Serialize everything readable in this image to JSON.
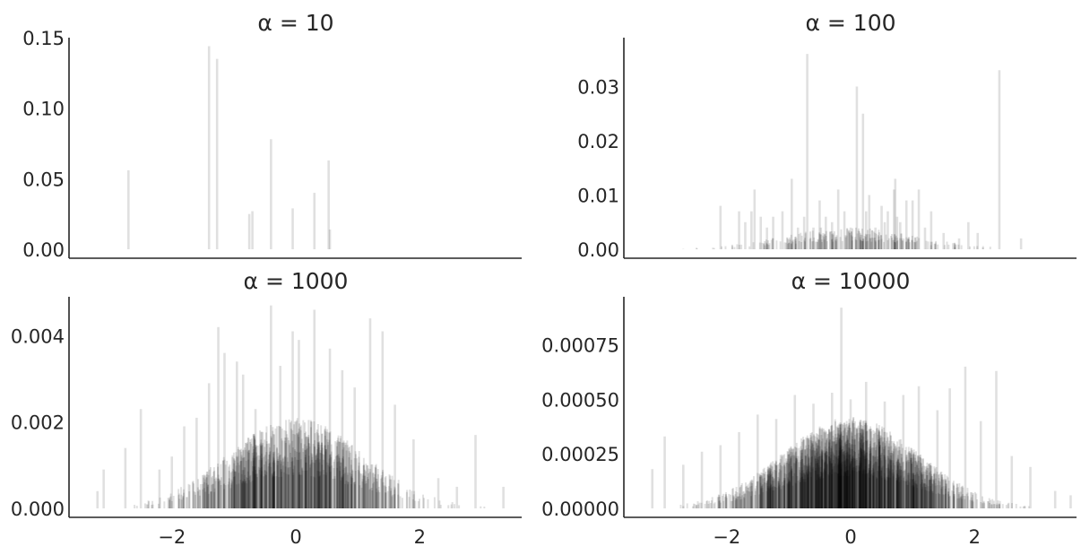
{
  "chart_data": [
    {
      "type": "bar",
      "title": "α = 10",
      "xlabel": "",
      "ylabel": "",
      "ylim": [
        0,
        0.15
      ],
      "yticks": [
        "0.00",
        "0.05",
        "0.10",
        "0.15"
      ],
      "ytick_values": [
        0,
        0.05,
        0.1,
        0.15
      ],
      "xlim": [
        -3.5,
        3.5
      ],
      "xticks": [],
      "xtick_values": [],
      "grid": false,
      "bar_color": "#000000",
      "bar_opacity": 0.12,
      "x": [
        -2.7,
        -1.4,
        -1.27,
        -0.75,
        -0.7,
        -0.4,
        -0.05,
        0.3,
        0.53,
        0.55
      ],
      "values": [
        0.056,
        0.144,
        0.135,
        0.025,
        0.027,
        0.078,
        0.029,
        0.04,
        0.063,
        0.014
      ]
    },
    {
      "type": "bar",
      "title": "α = 100",
      "xlabel": "",
      "ylabel": "",
      "ylim": [
        0,
        0.039
      ],
      "yticks": [
        "0.00",
        "0.01",
        "0.02",
        "0.03"
      ],
      "ytick_values": [
        0,
        0.01,
        0.02,
        0.03
      ],
      "xlim": [
        -3.5,
        3.5
      ],
      "xticks": [],
      "xtick_values": [],
      "grid": false,
      "bar_color": "#000000",
      "bar_opacity": 0.12,
      "x": [
        -2.1,
        -1.8,
        -1.7,
        -1.6,
        -1.55,
        -1.45,
        -1.35,
        -1.25,
        -1.1,
        -0.95,
        -0.85,
        -0.75,
        -0.7,
        -0.6,
        -0.5,
        -0.48,
        -0.4,
        -0.3,
        -0.2,
        -0.1,
        0.0,
        0.1,
        0.2,
        0.25,
        0.3,
        0.4,
        0.5,
        0.55,
        0.6,
        0.7,
        0.72,
        0.75,
        0.8,
        0.9,
        1.0,
        1.1,
        1.2,
        1.3,
        1.5,
        1.75,
        1.9,
        2.05,
        2.4,
        2.75
      ],
      "values": [
        0.008,
        0.007,
        0.005,
        0.007,
        0.011,
        0.006,
        0.004,
        0.006,
        0.007,
        0.013,
        0.004,
        0.006,
        0.036,
        0.004,
        0.009,
        0.004,
        0.006,
        0.005,
        0.011,
        0.007,
        0.004,
        0.03,
        0.025,
        0.007,
        0.01,
        0.004,
        0.008,
        0.005,
        0.007,
        0.011,
        0.013,
        0.006,
        0.005,
        0.009,
        0.009,
        0.011,
        0.004,
        0.007,
        0.003,
        0.002,
        0.005,
        0.003,
        0.033,
        0.002
      ]
    },
    {
      "type": "bar",
      "title": "α = 1000",
      "xlabel": "",
      "ylabel": "",
      "ylim": [
        0,
        0.0049
      ],
      "yticks": [
        "0.000",
        "0.002",
        "0.004"
      ],
      "ytick_values": [
        0,
        0.002,
        0.004
      ],
      "xlim": [
        -3.5,
        3.5
      ],
      "xticks": [
        "−2",
        "0",
        "2"
      ],
      "xtick_values": [
        -2,
        0,
        2
      ],
      "grid": false,
      "bar_color": "#000000",
      "bar_opacity": 0.12,
      "x": [
        -3.2,
        -3.1,
        -2.75,
        -2.5,
        -2.2,
        -2.0,
        -1.8,
        -1.6,
        -1.4,
        -1.25,
        -1.15,
        -0.95,
        -0.85,
        -0.65,
        -0.4,
        -0.25,
        -0.05,
        0.05,
        0.3,
        0.55,
        0.75,
        0.95,
        1.2,
        1.4,
        1.6,
        1.9,
        2.3,
        2.6,
        2.9,
        3.35
      ],
      "values": [
        0.0004,
        0.0009,
        0.0014,
        0.0023,
        0.0009,
        0.0012,
        0.0019,
        0.0021,
        0.0029,
        0.0042,
        0.0036,
        0.0034,
        0.0031,
        0.0023,
        0.0047,
        0.0033,
        0.0041,
        0.0039,
        0.0046,
        0.0037,
        0.0032,
        0.0028,
        0.0044,
        0.0041,
        0.0024,
        0.0016,
        0.0007,
        0.0005,
        0.0017,
        0.0005
      ]
    },
    {
      "type": "bar",
      "title": "α = 10000",
      "xlabel": "",
      "ylabel": "",
      "ylim": [
        0,
        0.00097
      ],
      "yticks": [
        "0.00000",
        "0.00025",
        "0.00050",
        "0.00075"
      ],
      "ytick_values": [
        0,
        0.00025,
        0.0005,
        0.00075
      ],
      "xlim": [
        -3.5,
        3.5
      ],
      "xticks": [
        "−2",
        "0",
        "2"
      ],
      "xtick_values": [
        -2,
        0,
        2
      ],
      "grid": false,
      "bar_color": "#000000",
      "bar_opacity": 0.12,
      "x": [
        -3.2,
        -3.0,
        -2.7,
        -2.4,
        -2.1,
        -1.8,
        -1.5,
        -1.2,
        -0.9,
        -0.6,
        -0.3,
        -0.15,
        0.0,
        0.25,
        0.55,
        0.85,
        1.1,
        1.4,
        1.6,
        1.85,
        2.1,
        2.35,
        2.6,
        2.9,
        3.3,
        3.55
      ],
      "values": [
        0.00018,
        0.00033,
        0.0002,
        0.00026,
        0.00029,
        0.00035,
        0.00043,
        0.00041,
        0.00052,
        0.00048,
        0.00053,
        0.00092,
        0.0005,
        0.00058,
        0.00049,
        0.00052,
        0.00056,
        0.00045,
        0.00055,
        0.00065,
        0.0004,
        0.00063,
        0.00024,
        0.00019,
        8e-05,
        6e-05
      ]
    }
  ]
}
